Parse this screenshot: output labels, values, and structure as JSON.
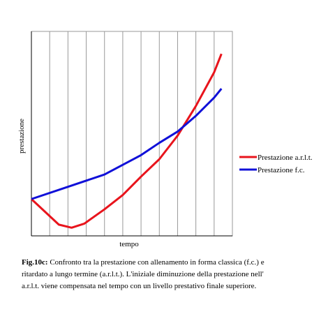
{
  "chart_data": {
    "type": "line",
    "x_label": "tempo",
    "y_label": "prestazione",
    "xlim": [
      0,
      11
    ],
    "ylim": [
      0,
      100
    ],
    "xticks": [
      1,
      2,
      3,
      4,
      5,
      6,
      7,
      8,
      9,
      10
    ],
    "grid": true,
    "legend": "right",
    "series": [
      {
        "name": "Prestazione a.r.l.t.",
        "color": "#e8141c",
        "x": [
          0,
          1.5,
          2.2,
          2.9,
          4,
          5,
          6,
          7,
          8,
          9,
          10,
          10.4
        ],
        "values": [
          18,
          5.5,
          4,
          6,
          13,
          20,
          29,
          37.5,
          49,
          63.5,
          80,
          89
        ]
      },
      {
        "name": "Prestazione f.c.",
        "color": "#1010d8",
        "x": [
          0,
          2,
          4,
          6,
          7,
          8,
          9,
          10,
          10.4
        ],
        "values": [
          18,
          24,
          30,
          39.5,
          45.5,
          51,
          58.7,
          67.6,
          72
        ]
      }
    ],
    "caption_label": "Fig.10c:",
    "caption": "Confronto tra la prestazione con allenamento in forma classica (f.c.) e ritardato a lungo termine (a.r.l.t.). L'iniziale diminuzione della prestazione nell' a.r.l.t. viene compensata nel tempo con un livello prestativo finale superiore."
  }
}
